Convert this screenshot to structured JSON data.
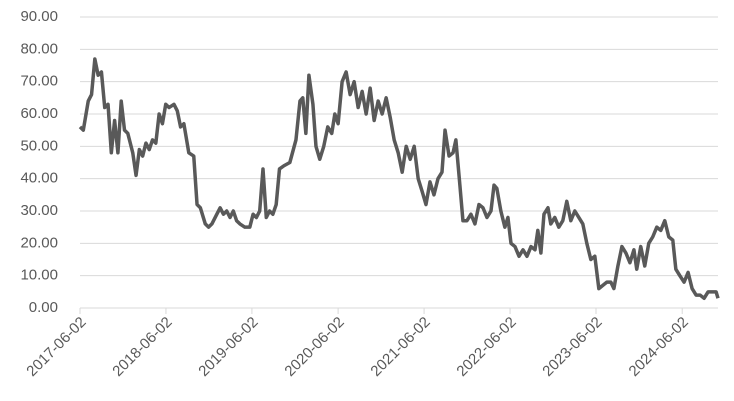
{
  "chart_data": {
    "type": "line",
    "color": "#595959",
    "grid": true,
    "x": [
      "2017-06-02",
      "2017-06-16",
      "2017-07-07",
      "2017-07-21",
      "2017-08-04",
      "2017-08-18",
      "2017-09-01",
      "2017-09-15",
      "2017-09-29",
      "2017-10-13",
      "2017-10-27",
      "2017-11-10",
      "2017-11-24",
      "2017-12-08",
      "2017-12-22",
      "2018-01-12",
      "2018-01-26",
      "2018-02-09",
      "2018-02-23",
      "2018-03-09",
      "2018-03-23",
      "2018-04-06",
      "2018-04-20",
      "2018-05-04",
      "2018-05-18",
      "2018-06-01",
      "2018-06-15",
      "2018-07-06",
      "2018-07-20",
      "2018-08-03",
      "2018-08-17",
      "2018-09-07",
      "2018-09-28",
      "2018-10-12",
      "2018-10-26",
      "2018-11-16",
      "2018-11-30",
      "2018-12-14",
      "2019-01-04",
      "2019-01-18",
      "2019-02-01",
      "2019-02-15",
      "2019-03-01",
      "2019-03-15",
      "2019-03-29",
      "2019-04-12",
      "2019-05-03",
      "2019-05-24",
      "2019-06-07",
      "2019-06-21",
      "2019-07-05",
      "2019-07-19",
      "2019-08-02",
      "2019-08-16",
      "2019-08-30",
      "2019-09-13",
      "2019-09-27",
      "2019-10-16",
      "2019-11-10",
      "2019-12-06",
      "2019-12-23",
      "2020-01-04",
      "2020-01-17",
      "2020-01-30",
      "2020-02-16",
      "2020-02-29",
      "2020-03-16",
      "2020-04-02",
      "2020-04-19",
      "2020-05-06",
      "2020-05-19",
      "2020-06-02",
      "2020-06-19",
      "2020-07-06",
      "2020-07-23",
      "2020-08-09",
      "2020-08-26",
      "2020-09-12",
      "2020-09-29",
      "2020-10-16",
      "2020-11-02",
      "2020-11-19",
      "2020-12-06",
      "2020-12-23",
      "2021-01-09",
      "2021-01-26",
      "2021-02-12",
      "2021-03-01",
      "2021-03-18",
      "2021-04-04",
      "2021-04-21",
      "2021-05-08",
      "2021-05-25",
      "2021-06-10",
      "2021-06-27",
      "2021-07-14",
      "2021-07-31",
      "2021-08-17",
      "2021-08-30",
      "2021-09-16",
      "2021-10-03",
      "2021-10-15",
      "2021-11-01",
      "2021-11-14",
      "2021-12-01",
      "2021-12-18",
      "2022-01-04",
      "2022-01-21",
      "2022-02-07",
      "2022-02-24",
      "2022-03-13",
      "2022-03-26",
      "2022-04-07",
      "2022-04-24",
      "2022-05-11",
      "2022-05-24",
      "2022-06-06",
      "2022-06-23",
      "2022-07-10",
      "2022-07-27",
      "2022-08-13",
      "2022-08-30",
      "2022-09-16",
      "2022-09-28",
      "2022-10-11",
      "2022-10-24",
      "2022-11-10",
      "2022-11-22",
      "2022-12-09",
      "2022-12-26",
      "2023-01-12",
      "2023-01-29",
      "2023-02-15",
      "2023-03-04",
      "2023-03-21",
      "2023-04-07",
      "2023-04-24",
      "2023-05-11",
      "2023-05-28",
      "2023-06-14",
      "2023-07-01",
      "2023-07-18",
      "2023-08-04",
      "2023-08-17",
      "2023-09-03",
      "2023-09-20",
      "2023-10-07",
      "2023-10-24",
      "2023-11-10",
      "2023-11-22",
      "2023-12-09",
      "2023-12-26",
      "2024-01-12",
      "2024-01-29",
      "2024-02-15",
      "2024-03-03",
      "2024-03-20",
      "2024-04-06",
      "2024-04-23",
      "2024-05-06",
      "2024-05-23",
      "2024-06-10",
      "2024-06-27",
      "2024-07-14",
      "2024-07-31",
      "2024-08-17",
      "2024-09-03",
      "2024-09-20",
      "2024-10-07",
      "2024-10-24",
      "2024-11-01"
    ],
    "values": [
      56,
      55,
      64,
      66,
      77,
      72,
      73,
      62,
      63,
      48,
      58,
      48,
      64,
      55,
      54,
      48,
      41,
      49,
      47,
      51,
      49,
      52,
      51,
      60,
      57,
      63,
      62,
      63,
      61,
      56,
      57,
      48,
      47,
      32,
      31,
      26,
      25,
      26,
      29,
      31,
      29,
      30,
      28,
      30,
      27,
      26,
      25,
      25,
      29,
      28,
      30,
      43,
      28,
      30,
      29,
      32,
      43,
      44,
      45,
      52,
      64,
      65,
      54,
      72,
      63,
      50,
      46,
      50,
      56,
      54,
      60,
      57,
      70,
      73,
      66,
      70,
      62,
      67,
      60,
      68,
      58,
      64,
      60,
      65,
      59,
      52,
      48,
      42,
      50,
      46,
      50,
      40,
      36,
      32,
      39,
      35,
      40,
      42,
      55,
      47,
      48,
      52,
      38,
      27,
      27,
      29,
      26,
      32,
      31,
      28,
      30,
      38,
      37,
      30,
      25,
      28,
      20,
      19,
      16,
      18,
      16,
      19,
      18,
      24,
      17,
      29,
      31,
      26,
      28,
      25,
      27,
      33,
      27,
      30,
      28,
      26,
      20,
      15,
      16,
      6,
      7,
      8,
      8,
      6,
      13,
      19,
      17,
      14,
      18,
      12,
      19,
      13,
      20,
      22,
      25,
      24,
      27,
      22,
      21,
      12,
      10,
      8,
      11,
      6,
      4,
      4,
      3,
      5,
      5,
      5,
      3
    ],
    "xlim": [
      "2017-06-02",
      "2024-11-01"
    ],
    "xticks": [
      "2017-06-02",
      "2018-06-02",
      "2019-06-02",
      "2020-06-02",
      "2021-06-02",
      "2022-06-02",
      "2023-06-02",
      "2024-06-02"
    ],
    "ylim": [
      0,
      90
    ],
    "yticks": [
      {
        "value": 0,
        "label": "0.00"
      },
      {
        "value": 10,
        "label": "10.00"
      },
      {
        "value": 20,
        "label": "20.00"
      },
      {
        "value": 30,
        "label": "30.00"
      },
      {
        "value": 40,
        "label": "40.00"
      },
      {
        "value": 50,
        "label": "50.00"
      },
      {
        "value": 60,
        "label": "60.00"
      },
      {
        "value": 70,
        "label": "70.00"
      },
      {
        "value": 80,
        "label": "80.00"
      },
      {
        "value": 90,
        "label": "90.00"
      }
    ]
  }
}
